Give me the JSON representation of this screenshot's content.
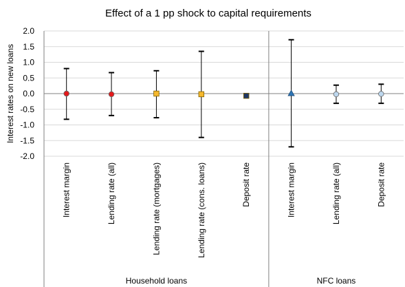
{
  "chart_data": {
    "type": "scatter",
    "title": "Effect of a 1 pp shock to capital requirements",
    "ylabel": "Interest rates on new loans",
    "xlabel": "",
    "ylim": [
      -2.0,
      2.0
    ],
    "yticks": [
      "2.0",
      "1.5",
      "1.0",
      "0.5",
      "0.0",
      "-0.5",
      "-1.0",
      "-1.5",
      "-2.0"
    ],
    "grid": true,
    "legend": "none",
    "groups": [
      {
        "name": "Household loans",
        "count": 5
      },
      {
        "name": "NFC loans",
        "count": 3
      }
    ],
    "categories": [
      "Interest margin",
      "Lending rate (all)",
      "Lending rate (mortgages)",
      "Lending rate (cons. loans)",
      "Deposit rate",
      "Interest margin",
      "Lending rate (all)",
      "Deposit rate"
    ],
    "points": [
      {
        "value": 0.0,
        "low": -0.82,
        "high": 0.8,
        "marker": "circle",
        "color": "#e41a1c"
      },
      {
        "value": -0.02,
        "low": -0.7,
        "high": 0.67,
        "marker": "circle",
        "color": "#e41a1c"
      },
      {
        "value": 0.0,
        "low": -0.77,
        "high": 0.73,
        "marker": "square",
        "color": "#f5b82e"
      },
      {
        "value": -0.02,
        "low": -1.4,
        "high": 1.35,
        "marker": "square",
        "color": "#f5b82e"
      },
      {
        "value": -0.07,
        "low": -0.12,
        "high": -0.02,
        "marker": "square",
        "color": "#1f3864"
      },
      {
        "value": 0.01,
        "low": -1.7,
        "high": 1.72,
        "marker": "triangle",
        "color": "#2e75b6"
      },
      {
        "value": -0.02,
        "low": -0.31,
        "high": 0.27,
        "marker": "circle",
        "color": "#bdd7ee"
      },
      {
        "value": -0.01,
        "low": -0.31,
        "high": 0.3,
        "marker": "circle",
        "color": "#bdd7ee"
      }
    ]
  }
}
